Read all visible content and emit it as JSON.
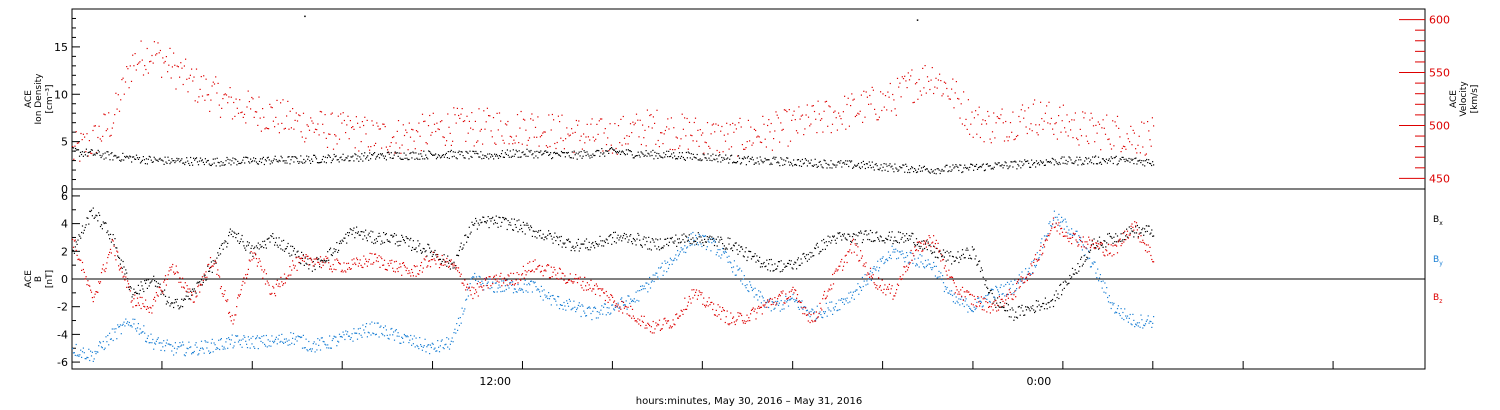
{
  "chart_data": [
    {
      "type": "scatter",
      "panel": "top",
      "ylabel_lines": [
        "ACE",
        "Ion Density",
        "[cm⁻³]"
      ],
      "ylabel_right_lines": [
        "ACE",
        "Velocity",
        "[km/s]"
      ],
      "ylim_left": [
        0,
        19
      ],
      "ylim_right": [
        440,
        610
      ],
      "yticks_left": [
        0,
        5,
        10,
        15
      ],
      "yticks_right": [
        450,
        500,
        550,
        600
      ],
      "x_hours": [
        0,
        34
      ],
      "colors": {
        "density": "#000000",
        "velocity": "#dd0000"
      },
      "series": [
        {
          "key": "density",
          "axis": "left",
          "x": [
            0.0,
            0.5,
            1.0,
            1.5,
            2.0,
            2.5,
            3.0,
            3.5,
            4.0,
            4.5,
            5.0,
            5.5,
            6.0,
            6.5,
            7.0,
            7.5,
            8.0,
            8.5,
            9.0,
            9.5,
            10.0,
            10.5,
            11.0,
            11.5,
            12.0,
            12.5,
            13.0,
            13.5,
            14.0,
            14.5,
            15.0,
            15.5,
            16.0,
            16.5,
            17.0,
            17.5,
            18.0,
            18.5,
            19.0,
            19.5,
            20.0,
            20.5,
            21.0,
            21.5,
            22.0,
            22.5,
            23.0,
            23.5,
            24.0,
            24.5,
            25.0,
            25.5,
            26.0,
            26.5,
            27.0
          ],
          "values": [
            4.0,
            3.8,
            3.5,
            3.3,
            3.1,
            3.0,
            3.0,
            2.9,
            3.0,
            3.0,
            3.1,
            3.1,
            3.2,
            3.3,
            3.4,
            3.5,
            3.6,
            3.6,
            3.7,
            3.7,
            3.6,
            3.6,
            3.8,
            3.8,
            3.7,
            3.6,
            3.8,
            4.0,
            3.8,
            3.7,
            3.6,
            3.5,
            3.4,
            3.2,
            3.0,
            3.0,
            2.9,
            2.8,
            2.7,
            2.6,
            2.5,
            2.3,
            2.2,
            2.1,
            2.2,
            2.3,
            2.5,
            2.6,
            2.8,
            3.0,
            3.0,
            3.1,
            3.1,
            3.0,
            2.9
          ]
        },
        {
          "key": "velocity",
          "axis": "right",
          "x": [
            0.0,
            0.5,
            1.0,
            1.5,
            2.0,
            2.5,
            3.0,
            3.5,
            4.0,
            4.5,
            5.0,
            5.5,
            6.0,
            6.5,
            7.0,
            7.5,
            8.0,
            8.5,
            9.0,
            9.5,
            10.0,
            10.5,
            11.0,
            11.5,
            12.0,
            12.5,
            13.0,
            13.5,
            14.0,
            14.5,
            15.0,
            15.5,
            16.0,
            16.5,
            17.0,
            17.5,
            18.0,
            18.5,
            19.0,
            19.5,
            20.0,
            20.5,
            21.0,
            21.5,
            22.0,
            22.5,
            23.0,
            23.5,
            24.0,
            24.5,
            25.0,
            25.5,
            26.0,
            26.5,
            27.0
          ],
          "values": [
            475,
            485,
            505,
            560,
            570,
            555,
            540,
            530,
            520,
            515,
            510,
            505,
            500,
            495,
            495,
            490,
            490,
            492,
            495,
            500,
            498,
            500,
            498,
            500,
            495,
            492,
            490,
            490,
            495,
            500,
            495,
            493,
            490,
            488,
            492,
            495,
            500,
            505,
            510,
            515,
            520,
            525,
            540,
            548,
            530,
            505,
            500,
            505,
            510,
            505,
            500,
            495,
            495,
            490,
            490
          ]
        },
        {
          "key": "density-outliers",
          "axis": "left",
          "x": [
            5.8,
            21.1
          ],
          "values": [
            18.3,
            17.9
          ]
        }
      ]
    },
    {
      "type": "scatter",
      "panel": "bottom",
      "ylabel_lines": [
        "ACE",
        "B",
        "[nT]"
      ],
      "ylim": [
        -6.5,
        6.5
      ],
      "yticks": [
        -6,
        -4,
        -2,
        0,
        2,
        4,
        6
      ],
      "x_hours": [
        0,
        34
      ],
      "xticks_hours": [
        0,
        2.26,
        4.53,
        6.79,
        9.06,
        11.32,
        13.58,
        15.84,
        18.11,
        20.37,
        22.64,
        24.9,
        27.16,
        29.43,
        31.69,
        34
      ],
      "xtick_labels": [
        {
          "hour": 10.57,
          "label": "12:00"
        },
        {
          "hour": 24.15,
          "label": "0:00"
        }
      ],
      "zero_line": true,
      "colors": {
        "bx": "#000000",
        "by": "#1a7fd4",
        "bz": "#dd0000"
      },
      "legend": [
        {
          "key": "bx",
          "label": "B",
          "sub": "x",
          "color": "#000000"
        },
        {
          "key": "by",
          "label": "B",
          "sub": "y",
          "color": "#1a7fd4"
        },
        {
          "key": "bz",
          "label": "B",
          "sub": "z",
          "color": "#dd0000"
        }
      ],
      "series": [
        {
          "key": "bx",
          "x": [
            0.0,
            0.5,
            1.0,
            1.5,
            2.0,
            2.5,
            3.0,
            3.5,
            4.0,
            4.5,
            5.0,
            5.5,
            6.0,
            6.5,
            7.0,
            7.5,
            8.0,
            8.5,
            9.0,
            9.5,
            10.0,
            10.5,
            11.0,
            11.5,
            12.0,
            12.5,
            13.0,
            13.5,
            14.0,
            14.5,
            15.0,
            15.5,
            16.0,
            16.5,
            17.0,
            17.5,
            18.0,
            18.5,
            19.0,
            19.5,
            20.0,
            20.5,
            21.0,
            21.5,
            22.0,
            22.5,
            23.0,
            23.5,
            24.0,
            24.5,
            25.0,
            25.5,
            26.0,
            26.5,
            27.0
          ],
          "values": [
            2.0,
            5.0,
            3.0,
            -1.0,
            0.0,
            -2.0,
            -1.0,
            1.0,
            3.5,
            2.0,
            3.0,
            2.0,
            1.0,
            2.0,
            3.5,
            3.0,
            3.0,
            2.5,
            2.0,
            1.0,
            4.0,
            4.2,
            4.0,
            3.5,
            3.0,
            2.5,
            2.5,
            3.0,
            3.0,
            2.5,
            2.8,
            3.0,
            2.8,
            2.5,
            1.5,
            1.0,
            1.0,
            2.0,
            3.0,
            3.0,
            3.2,
            3.0,
            3.0,
            2.0,
            1.5,
            2.0,
            -1.5,
            -2.5,
            -2.0,
            -1.5,
            0.5,
            2.5,
            3.0,
            3.5,
            3.5
          ]
        },
        {
          "key": "by",
          "x": [
            0.0,
            0.5,
            1.0,
            1.5,
            2.0,
            2.5,
            3.0,
            3.5,
            4.0,
            4.5,
            5.0,
            5.5,
            6.0,
            6.5,
            7.0,
            7.5,
            8.0,
            8.5,
            9.0,
            9.5,
            10.0,
            10.5,
            11.0,
            11.5,
            12.0,
            12.5,
            13.0,
            13.5,
            14.0,
            14.5,
            15.0,
            15.5,
            16.0,
            16.5,
            17.0,
            17.5,
            18.0,
            18.5,
            19.0,
            19.5,
            20.0,
            20.5,
            21.0,
            21.5,
            22.0,
            22.5,
            23.0,
            23.5,
            24.0,
            24.5,
            25.0,
            25.5,
            26.0,
            26.5,
            27.0
          ],
          "values": [
            -5.0,
            -5.5,
            -4.0,
            -3.0,
            -4.5,
            -5.0,
            -5.0,
            -4.8,
            -4.5,
            -4.5,
            -4.5,
            -4.2,
            -4.8,
            -4.5,
            -4.0,
            -3.5,
            -4.0,
            -4.5,
            -5.0,
            -4.5,
            0.0,
            -0.5,
            -0.5,
            -0.5,
            -1.5,
            -2.0,
            -2.5,
            -2.0,
            -1.5,
            0.0,
            1.5,
            3.0,
            2.5,
            1.0,
            -1.0,
            -2.0,
            -1.5,
            -2.5,
            -2.0,
            -1.0,
            0.5,
            2.0,
            1.5,
            1.0,
            -1.5,
            -2.0,
            -1.0,
            -0.5,
            1.0,
            4.5,
            3.5,
            1.0,
            -2.0,
            -3.0,
            -3.0
          ]
        },
        {
          "key": "bz",
          "x": [
            0.0,
            0.5,
            1.0,
            1.5,
            2.0,
            2.5,
            3.0,
            3.5,
            4.0,
            4.5,
            5.0,
            5.5,
            6.0,
            6.5,
            7.0,
            7.5,
            8.0,
            8.5,
            9.0,
            9.5,
            10.0,
            10.5,
            11.0,
            11.5,
            12.0,
            12.5,
            13.0,
            13.5,
            14.0,
            14.5,
            15.0,
            15.5,
            16.0,
            16.5,
            17.0,
            17.5,
            18.0,
            18.5,
            19.0,
            19.5,
            20.0,
            20.5,
            21.0,
            21.5,
            22.0,
            22.5,
            23.0,
            23.5,
            24.0,
            24.5,
            25.0,
            25.5,
            26.0,
            26.5,
            27.0
          ],
          "values": [
            3.0,
            -1.5,
            2.5,
            -1.5,
            -2.0,
            1.0,
            -1.5,
            1.5,
            -3.0,
            2.0,
            -1.0,
            1.0,
            1.5,
            1.0,
            1.0,
            1.5,
            1.0,
            0.5,
            1.5,
            1.0,
            -1.0,
            0.0,
            0.0,
            1.0,
            0.5,
            0.0,
            -0.5,
            -1.5,
            -2.5,
            -3.5,
            -3.0,
            -1.0,
            -2.0,
            -3.0,
            -2.5,
            -1.5,
            -1.0,
            -3.0,
            0.0,
            2.5,
            0.0,
            -1.0,
            2.0,
            3.0,
            -0.5,
            -1.5,
            -2.0,
            -1.0,
            1.0,
            4.0,
            3.0,
            2.5,
            2.0,
            4.0,
            1.5
          ]
        }
      ]
    }
  ],
  "footer": {
    "xaxis_caption": "hours:minutes, May 30, 2016 – May 31, 2016"
  }
}
